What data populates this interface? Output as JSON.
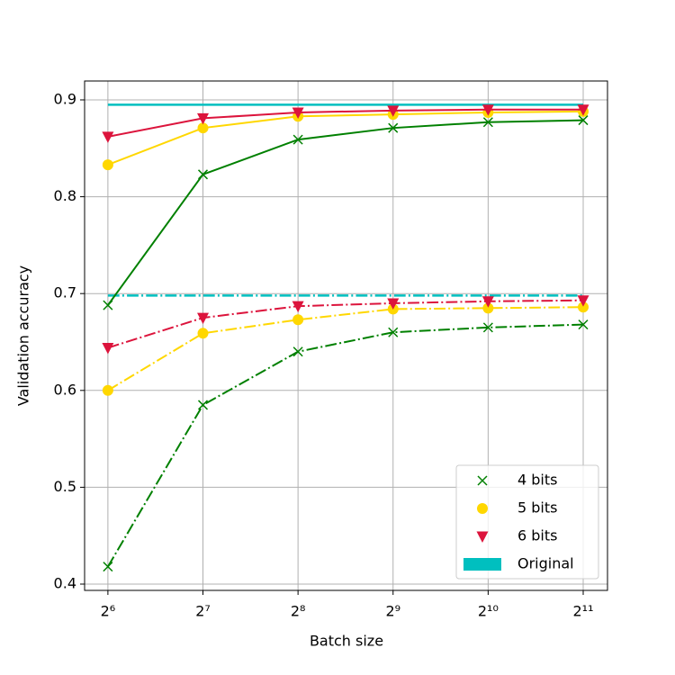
{
  "chart_data": {
    "type": "line",
    "xlabel": "Batch size",
    "ylabel": "Validation accuracy",
    "x": [
      64,
      128,
      256,
      512,
      1024,
      2048
    ],
    "xscale": "log2",
    "xlim": [
      54,
      2445
    ],
    "xticks": [
      {
        "value": 64,
        "label": "2⁶"
      },
      {
        "value": 128,
        "label": "2⁷"
      },
      {
        "value": 256,
        "label": "2⁸"
      },
      {
        "value": 512,
        "label": "2⁹"
      },
      {
        "value": 1024,
        "label": "2¹⁰"
      },
      {
        "value": 2048,
        "label": "2¹¹"
      }
    ],
    "ylim": [
      0.3935,
      0.9195
    ],
    "yticks": [
      0.4,
      0.5,
      0.6,
      0.7,
      0.8,
      0.9
    ],
    "grid": true,
    "legend": "lower right",
    "series": [
      {
        "name": "4 bits",
        "color": "#008000",
        "marker": "x",
        "lines": [
          {
            "style": "solid",
            "values": [
              0.688,
              0.823,
              0.859,
              0.871,
              0.877,
              0.879
            ]
          },
          {
            "style": "dashdot",
            "values": [
              0.418,
              0.585,
              0.64,
              0.66,
              0.665,
              0.668
            ]
          }
        ]
      },
      {
        "name": "5 bits",
        "color": "#ffd700",
        "marker": "o",
        "lines": [
          {
            "style": "solid",
            "values": [
              0.833,
              0.871,
              0.883,
              0.885,
              0.887,
              0.888
            ]
          },
          {
            "style": "dashdot",
            "values": [
              0.6,
              0.659,
              0.673,
              0.684,
              0.685,
              0.686
            ]
          }
        ]
      },
      {
        "name": "6 bits",
        "color": "#dc143c",
        "marker": "v",
        "lines": [
          {
            "style": "solid",
            "values": [
              0.862,
              0.881,
              0.887,
              0.889,
              0.89,
              0.89
            ]
          },
          {
            "style": "dashdot",
            "values": [
              0.644,
              0.675,
              0.687,
              0.69,
              0.692,
              0.693
            ]
          }
        ]
      }
    ],
    "reference": {
      "name": "Original",
      "color": "#00bfbf",
      "values": [
        0.895,
        0.698
      ],
      "styles": [
        "solid",
        "dashdot"
      ]
    }
  }
}
